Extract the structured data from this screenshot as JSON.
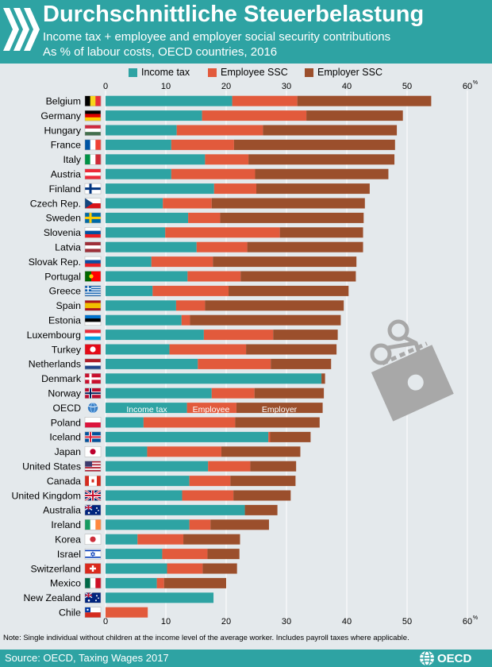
{
  "header": {
    "title": "Durchschnittliche Steuerbelastung",
    "subtitle_line1": "Income tax + employee and employer social security contributions",
    "subtitle_line2": "As % of labour costs, OECD countries, 2016"
  },
  "legend": {
    "income_tax": "Income tax",
    "employee_ssc": "Employee SSC",
    "employer_ssc": "Employer SSC"
  },
  "colors": {
    "income_tax": "#2ea3a3",
    "employee_ssc": "#e25a3c",
    "employer_ssc": "#9b4f2c",
    "header_bg": "#2ea3a3",
    "panel_bg": "#e4e9ec",
    "stamp_gray": "#a8a8a8"
  },
  "icons": [
    "chevron-logo-icon",
    "scissors-stamp-icon",
    "oecd-globe-icon",
    "country-flag-icon"
  ],
  "oecd_bar_labels": {
    "income_tax": "Income tax",
    "employee": "Employee",
    "employer": "Employer"
  },
  "note": "Note: Single individual without children at the income level of the average worker. Includes payroll taxes where applicable.",
  "footer": {
    "source": "Source: OECD, Taxing Wages 2017",
    "logo_text": "OECD"
  },
  "chart_data": {
    "type": "bar",
    "orientation": "horizontal",
    "stacked": true,
    "xlim": [
      0,
      60
    ],
    "ticks": [
      0,
      10,
      20,
      30,
      40,
      50,
      60
    ],
    "unit_label": "%",
    "grid": true,
    "legend_position": "top",
    "categories": [
      "Belgium",
      "Germany",
      "Hungary",
      "France",
      "Italy",
      "Austria",
      "Finland",
      "Czech Rep.",
      "Sweden",
      "Slovenia",
      "Latvia",
      "Slovak Rep.",
      "Portugal",
      "Greece",
      "Spain",
      "Estonia",
      "Luxembourg",
      "Turkey",
      "Netherlands",
      "Denmark",
      "Norway",
      "OECD",
      "Poland",
      "Iceland",
      "Japan",
      "United States",
      "Canada",
      "United Kingdom",
      "Australia",
      "Ireland",
      "Korea",
      "Israel",
      "Switzerland",
      "Mexico",
      "New Zealand",
      "Chile"
    ],
    "series": [
      {
        "name": "Income tax",
        "values": [
          21.0,
          16.0,
          11.8,
          10.9,
          16.5,
          10.9,
          18.0,
          9.5,
          13.7,
          9.9,
          15.1,
          7.6,
          13.6,
          7.8,
          11.7,
          12.6,
          16.3,
          10.6,
          15.3,
          35.8,
          17.6,
          13.5,
          6.3,
          27.0,
          6.9,
          17.0,
          13.9,
          12.7,
          23.1,
          13.9,
          5.3,
          9.4,
          10.2,
          8.5,
          17.9,
          0.0
        ]
      },
      {
        "name": "Employee SSC",
        "values": [
          10.8,
          17.3,
          14.3,
          10.4,
          7.2,
          13.9,
          7.0,
          8.1,
          5.3,
          19.0,
          8.4,
          10.2,
          8.8,
          12.6,
          4.8,
          1.4,
          11.5,
          12.7,
          12.1,
          0.0,
          7.1,
          8.2,
          15.2,
          0.3,
          12.3,
          7.0,
          6.8,
          8.5,
          0.0,
          3.5,
          7.6,
          7.5,
          5.9,
          1.2,
          0.0,
          7.0
        ]
      },
      {
        "name": "Employer SSC",
        "values": [
          22.2,
          16.0,
          22.2,
          26.7,
          24.2,
          22.1,
          18.8,
          25.4,
          23.8,
          13.8,
          19.2,
          23.8,
          19.1,
          19.9,
          23.0,
          25.0,
          10.7,
          15.0,
          10.0,
          0.6,
          11.5,
          14.3,
          14.0,
          6.7,
          13.1,
          7.6,
          10.8,
          9.5,
          5.4,
          9.7,
          9.4,
          5.3,
          5.7,
          10.3,
          0.0,
          0.0
        ]
      }
    ]
  }
}
